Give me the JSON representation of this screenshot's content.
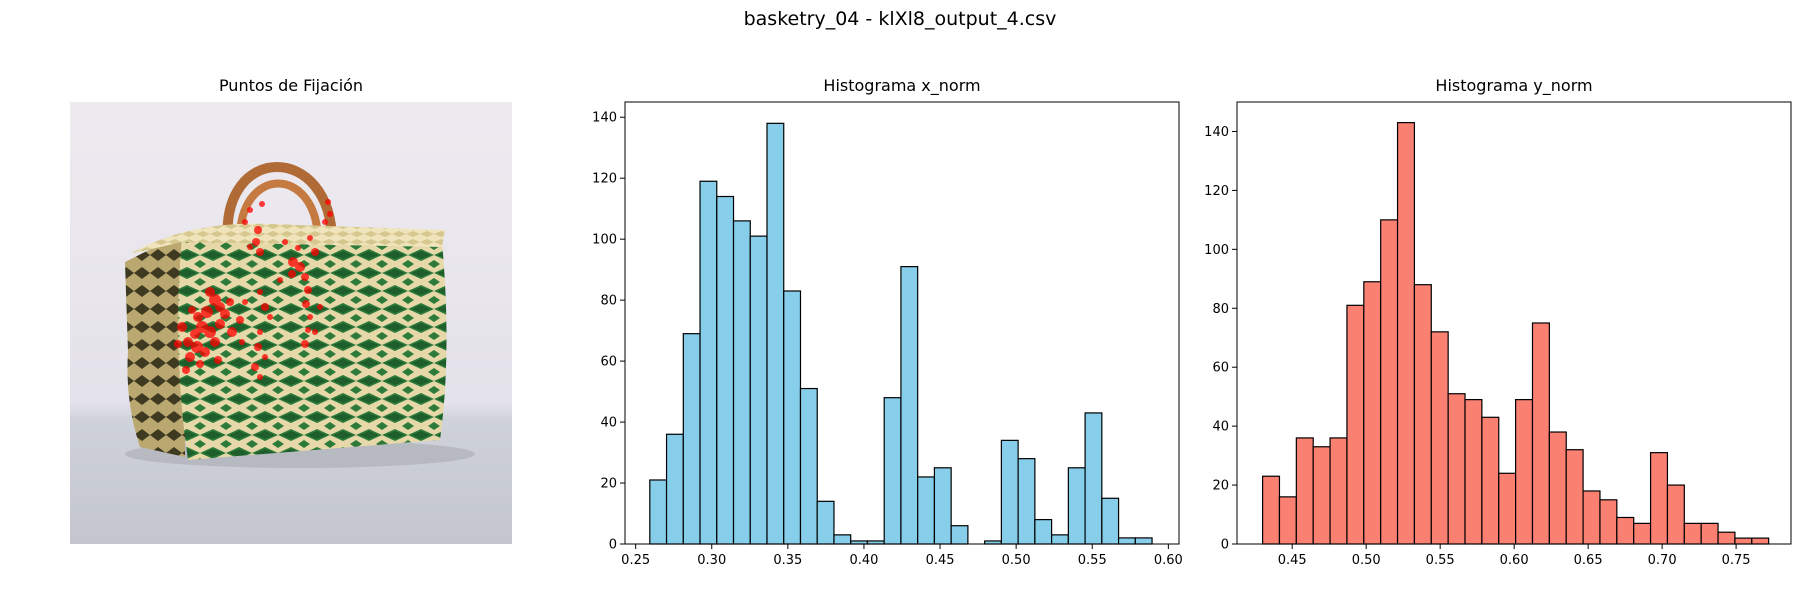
{
  "figure": {
    "suptitle": "basketry_04 - klXl8_output_4.csv",
    "image_panel": {
      "title": "Puntos de Fijación",
      "image_semantic": "woven basket bag with wooden handles, fixation points overlaid in red",
      "point_color": "#ff0000"
    }
  },
  "chart_data": [
    {
      "type": "bar",
      "title": "Histograma x_norm",
      "color": "#87ceeb",
      "edgecolor": "#000000",
      "bin_start": 0.2593,
      "bin_width": 0.011,
      "values": [
        21,
        36,
        69,
        119,
        114,
        106,
        101,
        138,
        83,
        51,
        14,
        3,
        1,
        1,
        48,
        91,
        22,
        25,
        6,
        0,
        1,
        34,
        28,
        8,
        3,
        25,
        43,
        15,
        2,
        2
      ],
      "xlim": [
        0.243,
        0.607
      ],
      "ylim": [
        0,
        145
      ],
      "xticks": [
        "0.25",
        "0.30",
        "0.35",
        "0.40",
        "0.45",
        "0.50",
        "0.55",
        "0.60"
      ],
      "xtick_values": [
        0.25,
        0.3,
        0.35,
        0.4,
        0.45,
        0.5,
        0.55,
        0.6
      ],
      "yticks": [
        "0",
        "20",
        "40",
        "60",
        "80",
        "100",
        "120",
        "140"
      ],
      "ytick_values": [
        0,
        20,
        40,
        60,
        80,
        100,
        120,
        140
      ]
    },
    {
      "type": "bar",
      "title": "Histograma y_norm",
      "color": "#fa8072",
      "edgecolor": "#000000",
      "bin_start": 0.43,
      "bin_width": 0.0114,
      "values": [
        23,
        16,
        36,
        33,
        36,
        81,
        89,
        110,
        143,
        88,
        72,
        51,
        49,
        43,
        24,
        49,
        75,
        38,
        32,
        18,
        15,
        9,
        7,
        31,
        20,
        7,
        7,
        4,
        2,
        2
      ],
      "xlim": [
        0.4127,
        0.7871
      ],
      "ylim": [
        0,
        150
      ],
      "xticks": [
        "0.45",
        "0.50",
        "0.55",
        "0.60",
        "0.65",
        "0.70",
        "0.75"
      ],
      "xtick_values": [
        0.45,
        0.5,
        0.55,
        0.6,
        0.65,
        0.7,
        0.75
      ],
      "yticks": [
        "0",
        "20",
        "40",
        "60",
        "80",
        "100",
        "120",
        "140"
      ],
      "ytick_values": [
        0,
        20,
        40,
        60,
        80,
        100,
        120,
        140
      ]
    }
  ]
}
